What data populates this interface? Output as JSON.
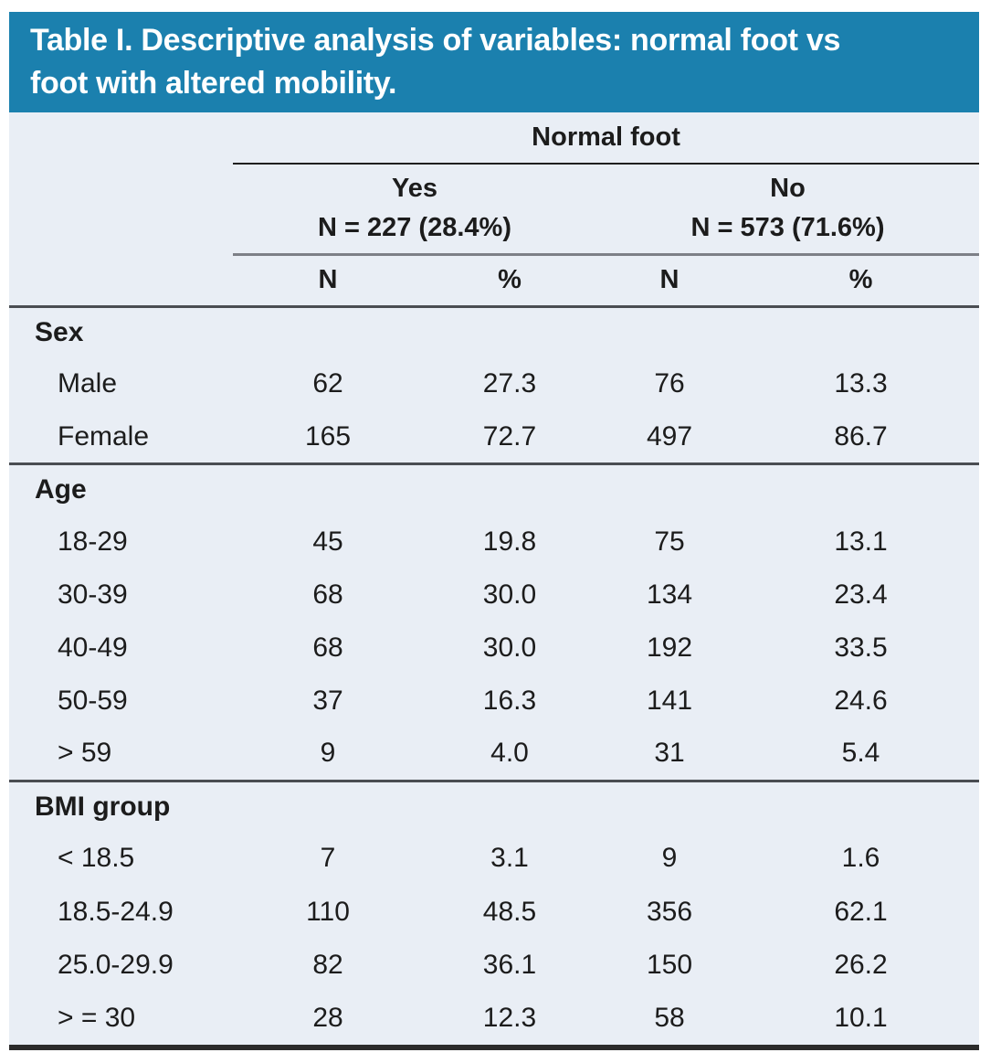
{
  "title": "Table I. Descriptive analysis of variables: normal foot vs foot with altered mobility.",
  "colors": {
    "header_background": "#1b80ae",
    "header_text": "#ffffff",
    "table_background": "#e9eef5",
    "body_text": "#1c1c1c",
    "thin_rule": "#1f1f1f",
    "gray_rule": "#7d8087",
    "section_rule": "#4a4d52",
    "bottom_rule": "#2b2b2b"
  },
  "table": {
    "group_header": "Normal foot",
    "col_groups": [
      {
        "label": "Yes",
        "sublabel": "N = 227 (28.4%)"
      },
      {
        "label": "No",
        "sublabel": "N = 573 (71.6%)"
      }
    ],
    "col_headers": [
      "N",
      "%",
      "N",
      "%"
    ],
    "sections": [
      {
        "name": "Sex",
        "rows": [
          {
            "label": "Male",
            "values": [
              "62",
              "27.3",
              "76",
              "13.3"
            ]
          },
          {
            "label": "Female",
            "values": [
              "165",
              "72.7",
              "497",
              "86.7"
            ]
          }
        ]
      },
      {
        "name": "Age",
        "rows": [
          {
            "label": "18-29",
            "values": [
              "45",
              "19.8",
              "75",
              "13.1"
            ]
          },
          {
            "label": "30-39",
            "values": [
              "68",
              "30.0",
              "134",
              "23.4"
            ]
          },
          {
            "label": "40-49",
            "values": [
              "68",
              "30.0",
              "192",
              "33.5"
            ]
          },
          {
            "label": "50-59",
            "values": [
              "37",
              "16.3",
              "141",
              "24.6"
            ]
          },
          {
            "label": "> 59",
            "values": [
              "9",
              "4.0",
              "31",
              "5.4"
            ]
          }
        ]
      },
      {
        "name": "BMI group",
        "rows": [
          {
            "label": "< 18.5",
            "values": [
              "7",
              "3.1",
              "9",
              "1.6"
            ]
          },
          {
            "label": "18.5-24.9",
            "values": [
              "110",
              "48.5",
              "356",
              "62.1"
            ]
          },
          {
            "label": "25.0-29.9",
            "values": [
              "82",
              "36.1",
              "150",
              "26.2"
            ]
          },
          {
            "label": "> = 30",
            "values": [
              "28",
              "12.3",
              "58",
              "10.1"
            ]
          }
        ]
      }
    ]
  }
}
